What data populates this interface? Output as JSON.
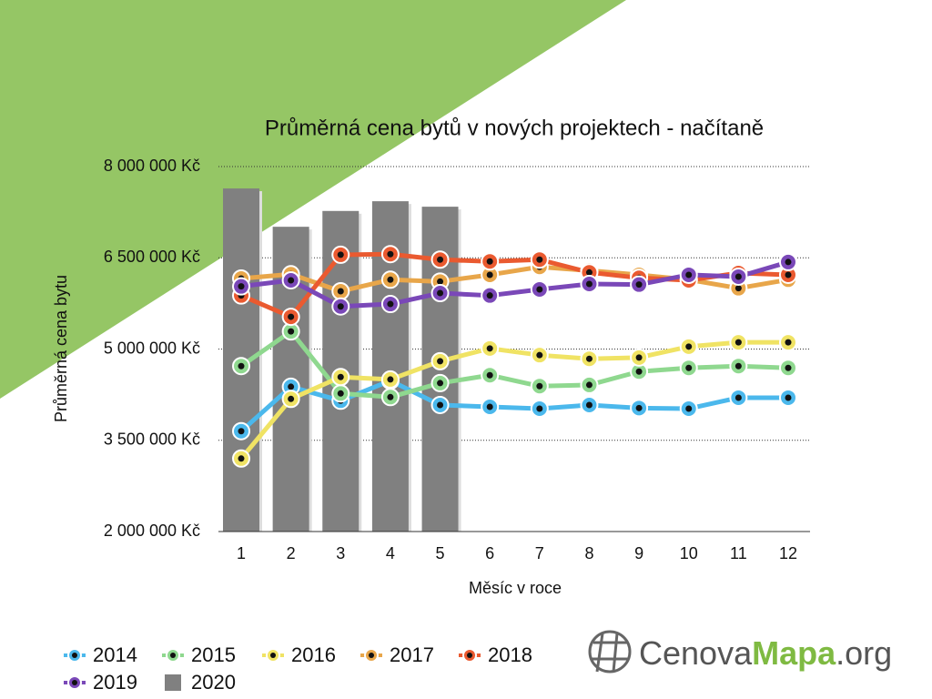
{
  "chart_data": {
    "type": "line",
    "title": "Průměrná cena bytů v nových projektech - načítaně",
    "xlabel": "Měsíc v roce",
    "ylabel": "Průměrná cena bytu",
    "categories": [
      "1",
      "2",
      "3",
      "4",
      "5",
      "6",
      "7",
      "8",
      "9",
      "10",
      "11",
      "12"
    ],
    "ylim": [
      2000000,
      8000000
    ],
    "yticks": [
      {
        "value": 2000000,
        "label": "2 000 000 Kč"
      },
      {
        "value": 3500000,
        "label": "3 500 000 Kč"
      },
      {
        "value": 5000000,
        "label": "5 000 000 Kč"
      },
      {
        "value": 6500000,
        "label": "6 500 000 Kč"
      },
      {
        "value": 8000000,
        "label": "8 000 000 Kč"
      }
    ],
    "grid": true,
    "legend": "bottom-left",
    "series": [
      {
        "name": "2014",
        "color": "#4bb8ec",
        "values": [
          3650000,
          4380000,
          4150000,
          4480000,
          4080000,
          4050000,
          4020000,
          4080000,
          4030000,
          4020000,
          4200000,
          4200000
        ]
      },
      {
        "name": "2015",
        "color": "#8fd88f",
        "values": [
          4720000,
          5290000,
          4270000,
          4210000,
          4440000,
          4570000,
          4390000,
          4410000,
          4630000,
          4690000,
          4720000,
          4690000
        ]
      },
      {
        "name": "2016",
        "color": "#f0e364",
        "values": [
          3200000,
          4180000,
          4540000,
          4500000,
          4800000,
          5010000,
          4900000,
          4840000,
          4860000,
          5040000,
          5110000,
          5110000
        ]
      },
      {
        "name": "2017",
        "color": "#e8a64a",
        "values": [
          6160000,
          6230000,
          5950000,
          6140000,
          6110000,
          6220000,
          6350000,
          6290000,
          6220000,
          6140000,
          6000000,
          6140000
        ]
      },
      {
        "name": "2018",
        "color": "#ea5a30",
        "values": [
          5880000,
          5530000,
          6550000,
          6560000,
          6470000,
          6440000,
          6470000,
          6260000,
          6170000,
          6130000,
          6250000,
          6220000
        ]
      },
      {
        "name": "2019",
        "color": "#7a48b8",
        "values": [
          6030000,
          6130000,
          5700000,
          5740000,
          5920000,
          5880000,
          5980000,
          6070000,
          6060000,
          6220000,
          6190000,
          6430000
        ]
      },
      {
        "name": "2020",
        "type": "bar",
        "color": "#808080",
        "values": [
          7640000,
          7010000,
          7270000,
          7430000,
          7340000,
          null,
          null,
          null,
          null,
          null,
          null,
          null
        ]
      }
    ]
  },
  "logo": {
    "part1": "Cenova",
    "part2": "Mapa",
    "part3": ".org"
  }
}
